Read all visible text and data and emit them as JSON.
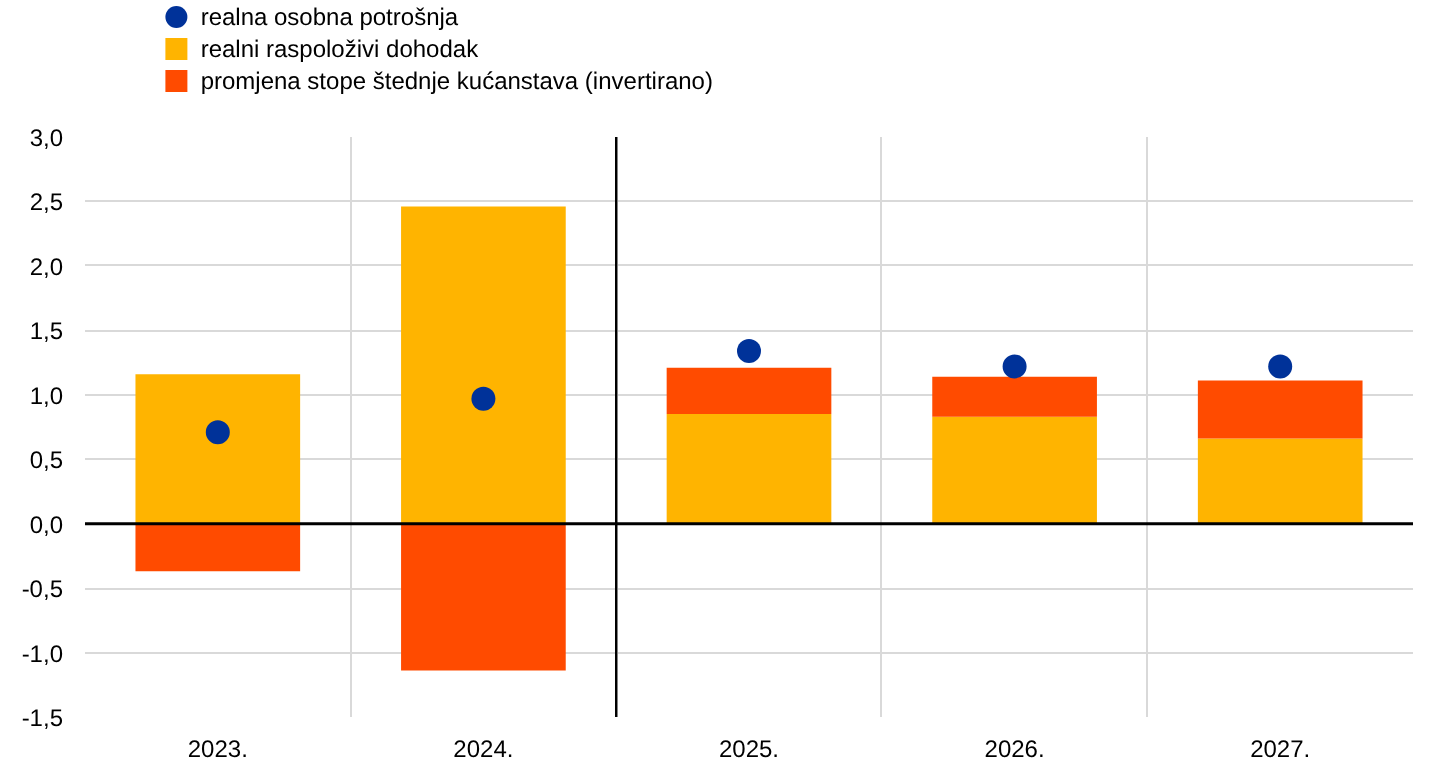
{
  "chart_data": {
    "type": "bar",
    "stacked": true,
    "categories": [
      "2023.",
      "2024.",
      "2025.",
      "2026.",
      "2027."
    ],
    "series": [
      {
        "name": "realni raspoloživi dohodak",
        "color": "#ffb400",
        "values": [
          1.16,
          2.46,
          0.85,
          0.83,
          0.66
        ]
      },
      {
        "name": "promjena stope štednje kućanstava (invertirano)",
        "color": "#ff4b00",
        "values": [
          -0.37,
          -1.14,
          0.36,
          0.31,
          0.45
        ]
      },
      {
        "name": "realna osobna potrošnja",
        "type": "scatter",
        "color": "#003299",
        "values": [
          0.71,
          0.97,
          1.34,
          1.22,
          1.22
        ]
      }
    ],
    "ylim": [
      -1.5,
      3.0
    ],
    "yticks": [
      {
        "value": -1.5,
        "label": "-1,5"
      },
      {
        "value": -1.0,
        "label": "-1,0"
      },
      {
        "value": -0.5,
        "label": "-0,5"
      },
      {
        "value": 0,
        "label": "0,0"
      },
      {
        "value": 0.5,
        "label": "0,5"
      },
      {
        "value": 1.0,
        "label": "1,0"
      },
      {
        "value": 1.5,
        "label": "1,5"
      },
      {
        "value": 2.0,
        "label": "2,0"
      },
      {
        "value": 2.5,
        "label": "2,5"
      },
      {
        "value": 3.0,
        "label": "3,0"
      }
    ],
    "ref_lines": [
      {
        "axis": "y",
        "value": 0,
        "color": "#000000"
      },
      {
        "axis": "x",
        "value": "2025.",
        "color": "#000000"
      }
    ],
    "grid": true,
    "legend": "top left",
    "marker": "circle"
  }
}
